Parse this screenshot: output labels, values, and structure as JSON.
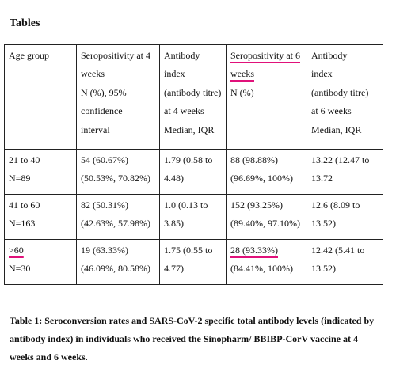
{
  "heading": "Tables",
  "table": {
    "header": [
      [
        "Age group"
      ],
      [
        "Seropositivity at 4",
        "weeks",
        "N (%), 95%",
        "confidence",
        "interval"
      ],
      [
        "Antibody",
        "index",
        "(antibody titre)",
        "at 4 weeks",
        "Median, IQR"
      ],
      [
        "Seropositivity at 6",
        "weeks",
        "N (%)"
      ],
      [
        "Antibody",
        "index",
        "(antibody titre)",
        "at 6 weeks",
        "Median, IQR"
      ]
    ],
    "rows": [
      {
        "age": [
          "21 to 40",
          "N=89"
        ],
        "sero4": [
          "54 (60.67%)",
          "(50.53%, 70.82%)"
        ],
        "ab4": [
          "1.79 (0.58 to",
          "4.48)"
        ],
        "sero6": [
          "88 (98.88%)",
          "(96.69%, 100%)"
        ],
        "ab6": [
          "13.22 (12.47 to",
          "13.72"
        ]
      },
      {
        "age": [
          "41 to 60",
          "N=163"
        ],
        "sero4": [
          "82 (50.31%)",
          "(42.63%, 57.98%)"
        ],
        "ab4": [
          "1.0 (0.13 to",
          "3.85)"
        ],
        "sero6": [
          "152 (93.25%)",
          "(89.40%, 97.10%)"
        ],
        "ab6": [
          "12.6 (8.09 to",
          "13.52)"
        ]
      },
      {
        "age": [
          ">60",
          "N=30"
        ],
        "sero4": [
          "19 (63.33%)",
          "(46.09%, 80.58%)"
        ],
        "ab4": [
          "1.75 (0.55 to",
          "4.77)"
        ],
        "sero6": [
          "28 (93.33%)",
          "(84.41%, 100%)"
        ],
        "ab6": [
          "12.42 (5.41 to",
          "13.52)"
        ]
      }
    ]
  },
  "caption": [
    "Table 1: Seroconversion rates and SARS-CoV-2 specific total antibody levels (indicated by",
    "antibody index) in individuals who received the Sinopharm/ BBIBP-CorV vaccine at 4",
    "weeks and 6 weeks."
  ],
  "colors": {
    "highlight_underline": "#e0117a"
  }
}
